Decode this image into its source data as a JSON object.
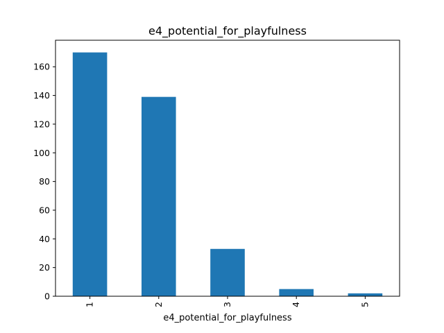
{
  "chart_data": {
    "type": "bar",
    "title": "e4_potential_for_playfulness",
    "xlabel": "e4_potential_for_playfulness",
    "ylabel": "",
    "categories": [
      "1",
      "2",
      "3",
      "4",
      "5"
    ],
    "values": [
      170,
      139,
      33,
      5,
      2
    ],
    "ylim": [
      0,
      178.5
    ],
    "yticks": [
      0,
      20,
      40,
      60,
      80,
      100,
      120,
      140,
      160
    ],
    "ytick_labels": [
      "0",
      "20",
      "40",
      "60",
      "80",
      "100",
      "120",
      "140",
      "160"
    ],
    "xtick_rotation": 90,
    "grid": false,
    "legend": "none",
    "bar_color": "#1f77b4"
  }
}
